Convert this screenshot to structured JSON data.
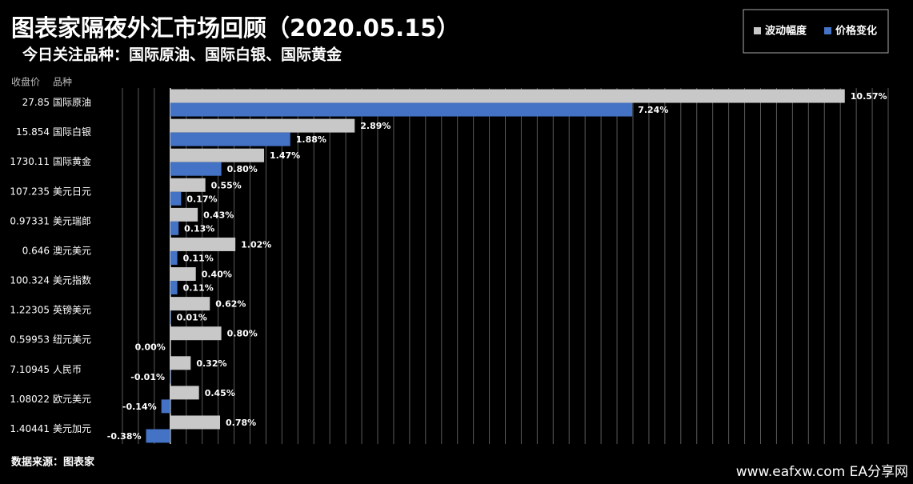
{
  "chart_data": {
    "type": "bar",
    "orientation": "horizontal",
    "title": "图表家隔夜外汇市场回顾（2020.05.15）",
    "subtitle": "今日关注品种：国际原油、国际白银、国际黄金",
    "column_headers": [
      "收盘价",
      "品种"
    ],
    "prices": [
      "27.85",
      "15.854",
      "1730.11",
      "107.235",
      "0.97331",
      "0.646",
      "100.324",
      "1.22305",
      "0.59953",
      "7.10945",
      "1.08022",
      "1.40441"
    ],
    "categories": [
      "国际原油",
      "国际白银",
      "国际黄金",
      "美元日元",
      "美元瑞郎",
      "澳元美元",
      "美元指数",
      "英镑美元",
      "纽元美元",
      "人民币",
      "欧元美元",
      "美元加元"
    ],
    "series": [
      {
        "name": "波动幅度",
        "color": "#c8c8c8",
        "values": [
          10.57,
          2.89,
          1.47,
          0.55,
          0.43,
          1.02,
          0.4,
          0.62,
          0.8,
          0.32,
          0.45,
          0.78
        ],
        "value_labels": [
          "10.57%",
          "2.89%",
          "1.47%",
          "0.55%",
          "0.43%",
          "1.02%",
          "0.40%",
          "0.62%",
          "0.80%",
          "0.32%",
          "0.45%",
          "0.78%"
        ]
      },
      {
        "name": "价格变化",
        "color": "#4472c4",
        "values": [
          7.24,
          1.88,
          0.8,
          0.17,
          0.13,
          0.11,
          0.11,
          0.01,
          0.0,
          -0.01,
          -0.14,
          -0.38
        ],
        "value_labels": [
          "7.24%",
          "1.88%",
          "0.80%",
          "0.17%",
          "0.13%",
          "0.11%",
          "0.11%",
          "0.01%",
          "0.00%",
          "-0.01%",
          "-0.14%",
          "-0.38%"
        ]
      }
    ],
    "xlim": [
      -0.75,
      11.25
    ],
    "xticks": [
      -0.75,
      -0.5,
      -0.25,
      0,
      0.25,
      0.5,
      0.75,
      1,
      1.25,
      1.5,
      1.75,
      2,
      2.25,
      2.5,
      2.75,
      3,
      3.25,
      3.5,
      3.75,
      4,
      4.25,
      4.5,
      4.75,
      5,
      5.25,
      5.5,
      5.75,
      6,
      6.25,
      6.5,
      6.75,
      7,
      7.25,
      7.5,
      7.75,
      8,
      8.25,
      8.5,
      8.75,
      9,
      9.25,
      9.5,
      9.75,
      10,
      10.25,
      10.5,
      10.75,
      11,
      11.25
    ],
    "grid": true,
    "legend_position": "top-right",
    "source": "数据来源：图表家",
    "watermark": "www.eafxw.com  EA分享网"
  }
}
